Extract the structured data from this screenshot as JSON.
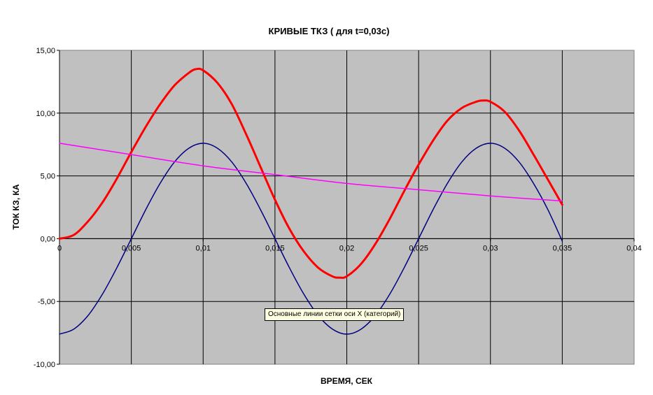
{
  "chart_data": {
    "type": "line",
    "title": "КРИВЫЕ ТКЗ   ( для t=0,03с)",
    "xlabel": "ВРЕМЯ, СЕК",
    "ylabel": "ТОК КЗ, КА",
    "xlim": [
      0,
      0.04
    ],
    "ylim": [
      -10,
      15
    ],
    "x_ticks": [
      "0",
      "0,005",
      "0,01",
      "0,015",
      "0,02",
      "0,025",
      "0,03",
      "0,035",
      "0,04"
    ],
    "y_ticks": [
      "15,00",
      "10,00",
      "5,00",
      "0,00",
      "-5,00",
      "-10,00"
    ],
    "grid": true,
    "legend": "none",
    "background_color": "#c0c0c0",
    "series": [
      {
        "color": "#ff0000",
        "x": [
          0,
          0.001,
          0.002,
          0.003,
          0.004,
          0.005,
          0.006,
          0.007,
          0.008,
          0.009,
          0.0095,
          0.01,
          0.011,
          0.012,
          0.013,
          0.014,
          0.015,
          0.016,
          0.017,
          0.018,
          0.019,
          0.0195,
          0.02,
          0.021,
          0.022,
          0.023,
          0.024,
          0.025,
          0.026,
          0.027,
          0.028,
          0.029,
          0.0295,
          0.03,
          0.031,
          0.032,
          0.033,
          0.034,
          0.035
        ],
        "y": [
          0,
          0.3,
          1.4,
          2.9,
          4.8,
          6.9,
          8.9,
          10.7,
          12.2,
          13.2,
          13.5,
          13.4,
          12.4,
          10.7,
          8.3,
          5.7,
          3.1,
          0.8,
          -1.0,
          -2.3,
          -3.0,
          -3.1,
          -3.0,
          -2.0,
          -0.4,
          1.6,
          3.8,
          5.9,
          7.8,
          9.4,
          10.4,
          10.9,
          11.0,
          10.9,
          10.1,
          8.6,
          6.7,
          4.7,
          2.7
        ]
      },
      {
        "color": "#000080",
        "x": [
          0,
          0.001,
          0.002,
          0.003,
          0.004,
          0.005,
          0.006,
          0.007,
          0.008,
          0.009,
          0.01,
          0.011,
          0.012,
          0.013,
          0.014,
          0.015,
          0.016,
          0.017,
          0.018,
          0.019,
          0.02,
          0.021,
          0.022,
          0.023,
          0.024,
          0.025,
          0.026,
          0.027,
          0.028,
          0.029,
          0.03,
          0.031,
          0.032,
          0.033,
          0.034,
          0.035
        ],
        "y": [
          -7.6,
          -7.2,
          -6.1,
          -4.4,
          -2.3,
          0.0,
          2.3,
          4.4,
          6.1,
          7.2,
          7.6,
          7.2,
          6.1,
          4.4,
          2.3,
          0.0,
          -2.3,
          -4.4,
          -6.1,
          -7.2,
          -7.6,
          -7.2,
          -6.1,
          -4.4,
          -2.3,
          0.0,
          2.3,
          4.4,
          6.1,
          7.2,
          7.6,
          7.2,
          6.1,
          4.4,
          2.3,
          -0.2
        ]
      },
      {
        "color": "#ff00ff",
        "x": [
          0,
          0.005,
          0.01,
          0.015,
          0.02,
          0.025,
          0.03,
          0.035
        ],
        "y": [
          7.6,
          6.7,
          5.8,
          5.1,
          4.4,
          3.9,
          3.4,
          3.0
        ]
      }
    ]
  },
  "tooltip": {
    "text": "Основные линии сетки оси X (категорий)"
  }
}
